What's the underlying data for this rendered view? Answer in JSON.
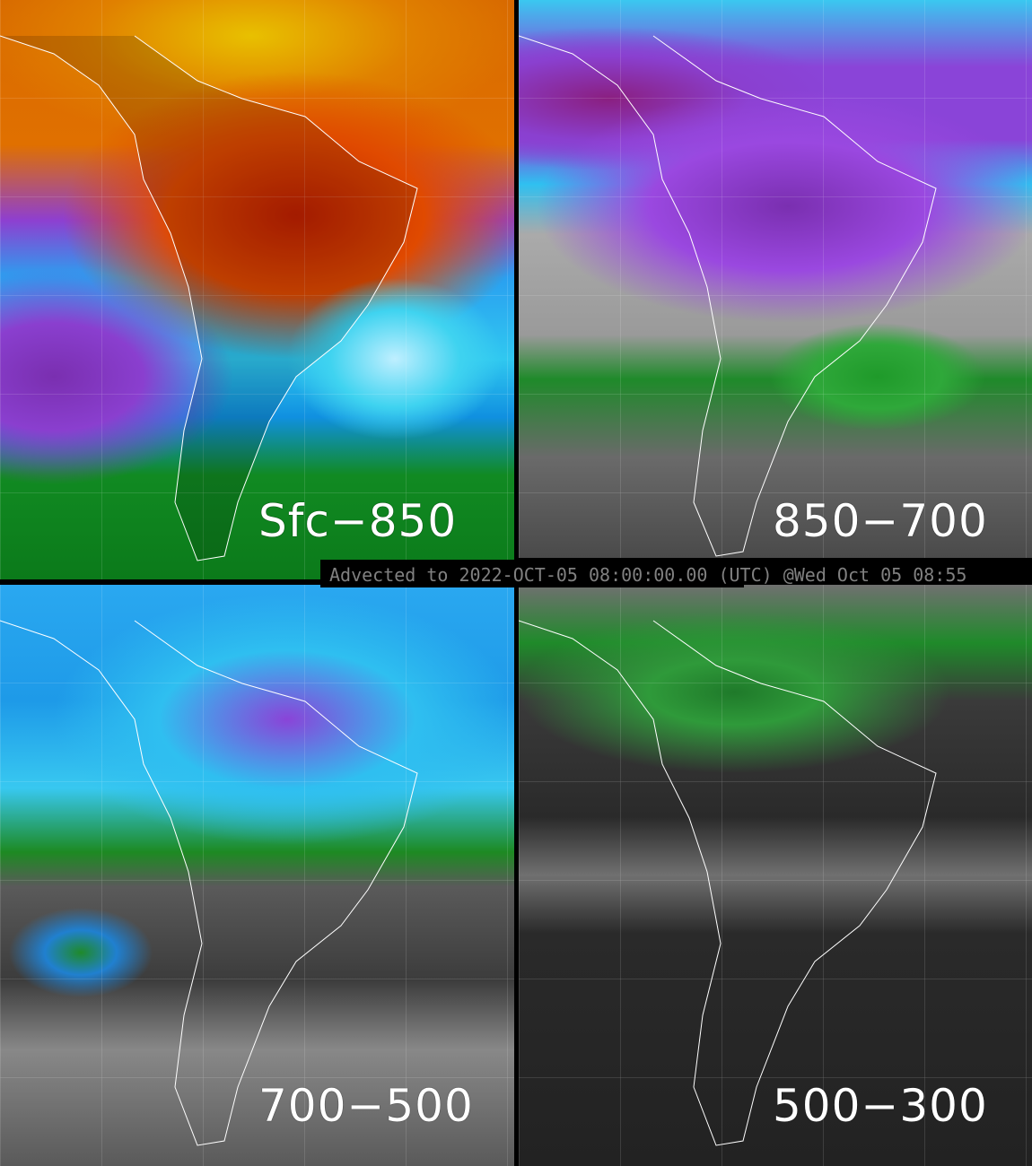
{
  "panels": [
    {
      "label": "Sfc−850"
    },
    {
      "label": "850−700"
    },
    {
      "label": "700−500"
    },
    {
      "label": "500−300"
    }
  ],
  "caption": "Advected to 2022-OCT-05 08:00:00.00 (UTC) @Wed Oct 05 08:55",
  "colors": {
    "background": "#000000",
    "coastline": "#ffffff",
    "caption_text": "#808080"
  }
}
